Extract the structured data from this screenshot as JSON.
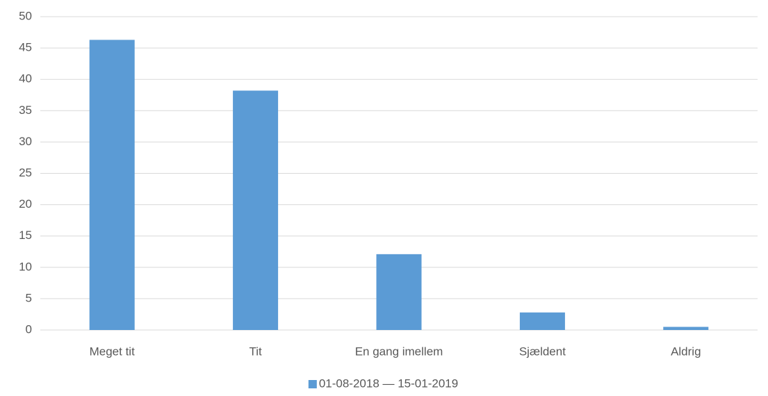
{
  "chart_data": {
    "type": "bar",
    "categories": [
      "Meget tit",
      "Tit",
      "En gang imellem",
      "Sjældent",
      "Aldrig"
    ],
    "series": [
      {
        "name": "01-08-2018 — 15-01-2019",
        "color": "#5b9bd5",
        "values": [
          46.3,
          38.2,
          12.1,
          2.8,
          0.5
        ]
      }
    ],
    "ylim": [
      0,
      50
    ],
    "yticks": [
      0,
      5,
      10,
      15,
      20,
      25,
      30,
      35,
      40,
      45,
      50
    ],
    "grid": true,
    "legend": "bottom"
  }
}
